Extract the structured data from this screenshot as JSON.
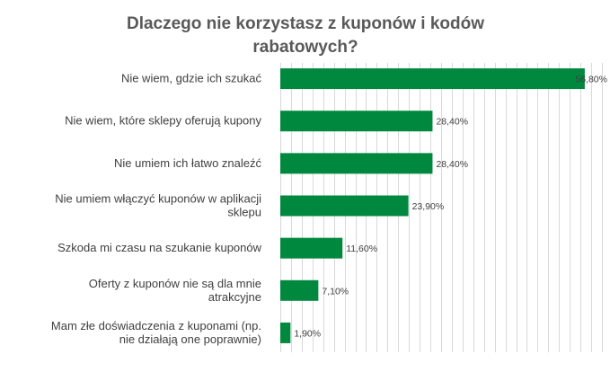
{
  "chart_data": {
    "type": "bar",
    "orientation": "horizontal",
    "title": "Dlaczego nie korzystasz z kuponów i kodów rabatowych?",
    "categories": [
      "Nie wiem, gdzie ich szukać",
      "Nie wiem, które sklepy oferują kupony",
      "Nie umiem ich łatwo znaleźć",
      "Nie umiem włączyć kuponów w aplikacji sklepu",
      "Szkoda mi czasu na szukanie kuponów",
      "Oferty z kuponów nie są dla mnie atrakcyjne",
      "Mam złe doświadczenia z kuponami (np. nie działają one poprawnie)"
    ],
    "category_lines": [
      [
        "Nie wiem, gdzie ich szukać"
      ],
      [
        "Nie wiem, które sklepy oferują kupony"
      ],
      [
        "Nie umiem ich łatwo znaleźć"
      ],
      [
        "Nie umiem włączyć kuponów w aplikacji",
        "sklepu"
      ],
      [
        "Szkoda mi czasu na szukanie kuponów"
      ],
      [
        "Oferty z kuponów nie są dla mnie",
        "atrakcyjne"
      ],
      [
        "Mam złe doświadczenia z kuponami (np.",
        "nie działają one poprawnie)"
      ]
    ],
    "values": [
      56.8,
      28.4,
      28.4,
      23.9,
      11.6,
      7.1,
      1.9
    ],
    "value_labels": [
      "56,80%",
      "28,40%",
      "28,40%",
      "23,90%",
      "11,60%",
      "7,10%",
      "1,90%"
    ],
    "xlim": [
      0,
      60
    ],
    "grid": true,
    "colors": {
      "bar": "#00893E",
      "grid": "#D9D9D9",
      "title": "#595959",
      "text": "#404040"
    }
  }
}
